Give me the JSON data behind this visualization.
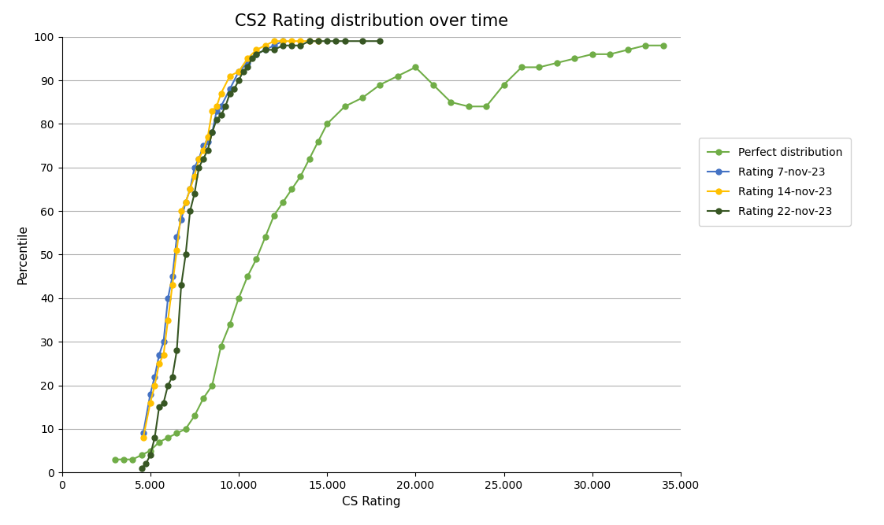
{
  "title": "CS2 Rating distribution over time",
  "xlabel": "CS Rating",
  "ylabel": "Percentile",
  "xlim": [
    0,
    35000
  ],
  "ylim": [
    0,
    100
  ],
  "xticks": [
    0,
    5000,
    10000,
    15000,
    20000,
    25000,
    30000,
    35000
  ],
  "yticks": [
    0,
    10,
    20,
    30,
    40,
    50,
    60,
    70,
    80,
    90,
    100
  ],
  "series": [
    {
      "label": "Perfect distribution",
      "color": "#70AD47",
      "marker": "o",
      "markersize": 5,
      "x": [
        3000,
        3500,
        4000,
        4500,
        5000,
        5500,
        6000,
        6500,
        7000,
        7500,
        8000,
        8500,
        9000,
        9500,
        10000,
        10500,
        11000,
        11500,
        12000,
        12500,
        13000,
        13500,
        14000,
        14500,
        15000,
        16000,
        17000,
        18000,
        19000,
        20000,
        21000,
        22000,
        23000,
        24000,
        25000,
        26000,
        27000,
        28000,
        29000,
        30000,
        31000,
        32000,
        33000,
        34000
      ],
      "y": [
        3,
        3,
        3,
        4,
        5,
        7,
        8,
        9,
        10,
        13,
        17,
        20,
        29,
        34,
        40,
        45,
        49,
        54,
        59,
        62,
        65,
        68,
        72,
        76,
        80,
        84,
        86,
        89,
        91,
        93,
        89,
        85,
        84,
        84,
        89,
        93,
        93,
        94,
        95,
        96,
        96,
        97,
        98,
        98
      ]
    },
    {
      "label": "Rating 7-nov-23",
      "color": "#4472C4",
      "marker": "o",
      "markersize": 5,
      "x": [
        4600,
        5000,
        5250,
        5500,
        5750,
        6000,
        6250,
        6500,
        6750,
        7000,
        7250,
        7500,
        7750,
        8000,
        8250,
        8500,
        8750,
        9000,
        9500,
        10000,
        10500,
        11000,
        11500,
        12000,
        12500
      ],
      "y": [
        9,
        18,
        22,
        27,
        30,
        40,
        45,
        54,
        58,
        62,
        65,
        70,
        72,
        75,
        76,
        78,
        83,
        84,
        88,
        92,
        94,
        96,
        97,
        98,
        99
      ]
    },
    {
      "label": "Rating 14-nov-23",
      "color": "#FFC000",
      "marker": "o",
      "markersize": 5,
      "x": [
        4600,
        5000,
        5250,
        5500,
        5750,
        6000,
        6250,
        6500,
        6750,
        7000,
        7250,
        7500,
        7750,
        8000,
        8250,
        8500,
        8750,
        9000,
        9500,
        10000,
        10500,
        11000,
        11500,
        12000,
        12500,
        13000,
        13500,
        14000,
        14500
      ],
      "y": [
        8,
        16,
        20,
        25,
        27,
        35,
        43,
        51,
        60,
        62,
        65,
        68,
        72,
        74,
        77,
        83,
        84,
        87,
        91,
        92,
        95,
        97,
        98,
        99,
        99,
        99,
        99,
        99,
        99
      ]
    },
    {
      "label": "Rating 22-nov-23",
      "color": "#375623",
      "marker": "o",
      "markersize": 5,
      "x": [
        4500,
        4750,
        5000,
        5250,
        5500,
        5750,
        6000,
        6250,
        6500,
        6750,
        7000,
        7250,
        7500,
        7750,
        8000,
        8250,
        8500,
        8750,
        9000,
        9250,
        9500,
        9750,
        10000,
        10250,
        10500,
        10750,
        11000,
        11500,
        12000,
        12500,
        13000,
        13500,
        14000,
        14500,
        15000,
        15500,
        16000,
        17000,
        18000
      ],
      "y": [
        1,
        2,
        4,
        8,
        15,
        16,
        20,
        22,
        28,
        43,
        50,
        60,
        64,
        70,
        72,
        74,
        78,
        81,
        82,
        84,
        87,
        88,
        90,
        92,
        93,
        95,
        96,
        97,
        97,
        98,
        98,
        98,
        99,
        99,
        99,
        99,
        99,
        99,
        99
      ]
    }
  ],
  "background_color": "#FFFFFF",
  "plot_bg_color": "#FFFFFF",
  "grid_color": "#B0B0B0",
  "title_fontsize": 15,
  "axis_label_fontsize": 11,
  "tick_fontsize": 10,
  "legend_fontsize": 10
}
